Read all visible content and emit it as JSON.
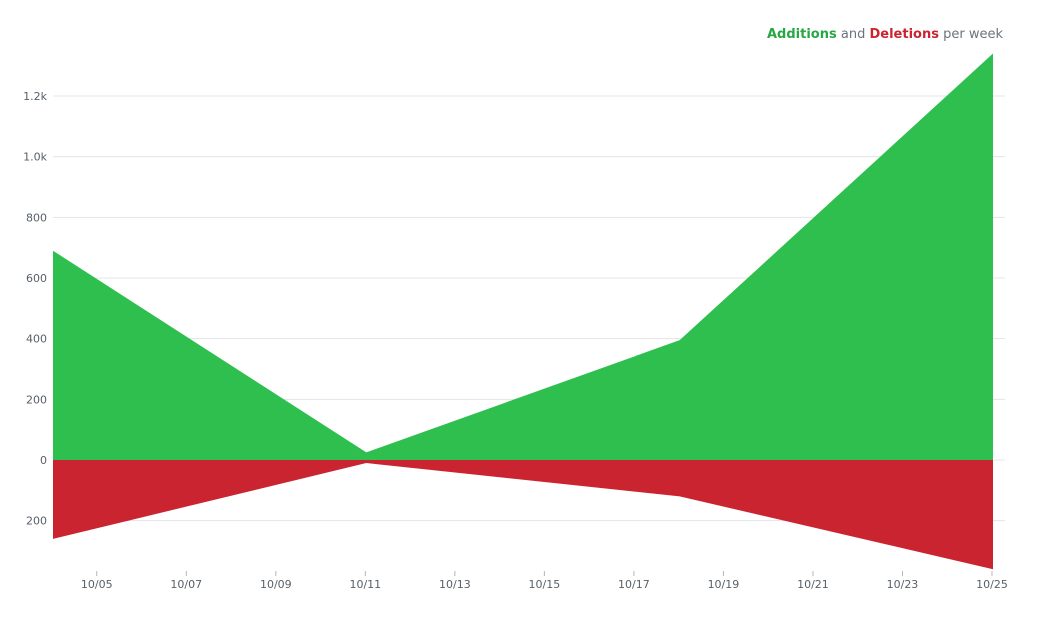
{
  "legend": {
    "additions_word": "Additions",
    "connector_word": "and",
    "deletions_word": "Deletions",
    "suffix_word": "per week"
  },
  "colors": {
    "additions": "#2ebf4f",
    "deletions": "#cb2431",
    "grid": "#e1e4e8",
    "tick_text": "#586069"
  },
  "chart_data": {
    "type": "area",
    "title": "",
    "xlabel": "",
    "ylabel": "",
    "x_ticks": [
      "10/05",
      "10/07",
      "10/09",
      "10/11",
      "10/13",
      "10/15",
      "10/17",
      "10/19",
      "10/21",
      "10/23",
      "10/25"
    ],
    "y_ticks": [
      {
        "value": 1200,
        "label": "1.2k"
      },
      {
        "value": 1000,
        "label": "1.0k"
      },
      {
        "value": 800,
        "label": "800"
      },
      {
        "value": 600,
        "label": "600"
      },
      {
        "value": 400,
        "label": "400"
      },
      {
        "value": 200,
        "label": "200"
      },
      {
        "value": 0,
        "label": "0"
      },
      {
        "value": -200,
        "label": "200"
      }
    ],
    "ylim": [
      -360,
      1340
    ],
    "xlim": [
      "10/04",
      "10/26"
    ],
    "grid": true,
    "legend_position": "top-right",
    "series": [
      {
        "name": "Additions",
        "points": [
          {
            "date": "10/04",
            "value": 690
          },
          {
            "date": "10/11",
            "value": 25
          },
          {
            "date": "10/18",
            "value": 395
          },
          {
            "date": "10/25",
            "value": 1340
          }
        ]
      },
      {
        "name": "Deletions",
        "points": [
          {
            "date": "10/04",
            "value": -260
          },
          {
            "date": "10/11",
            "value": -10
          },
          {
            "date": "10/18",
            "value": -120
          },
          {
            "date": "10/25",
            "value": -360
          }
        ]
      }
    ]
  }
}
